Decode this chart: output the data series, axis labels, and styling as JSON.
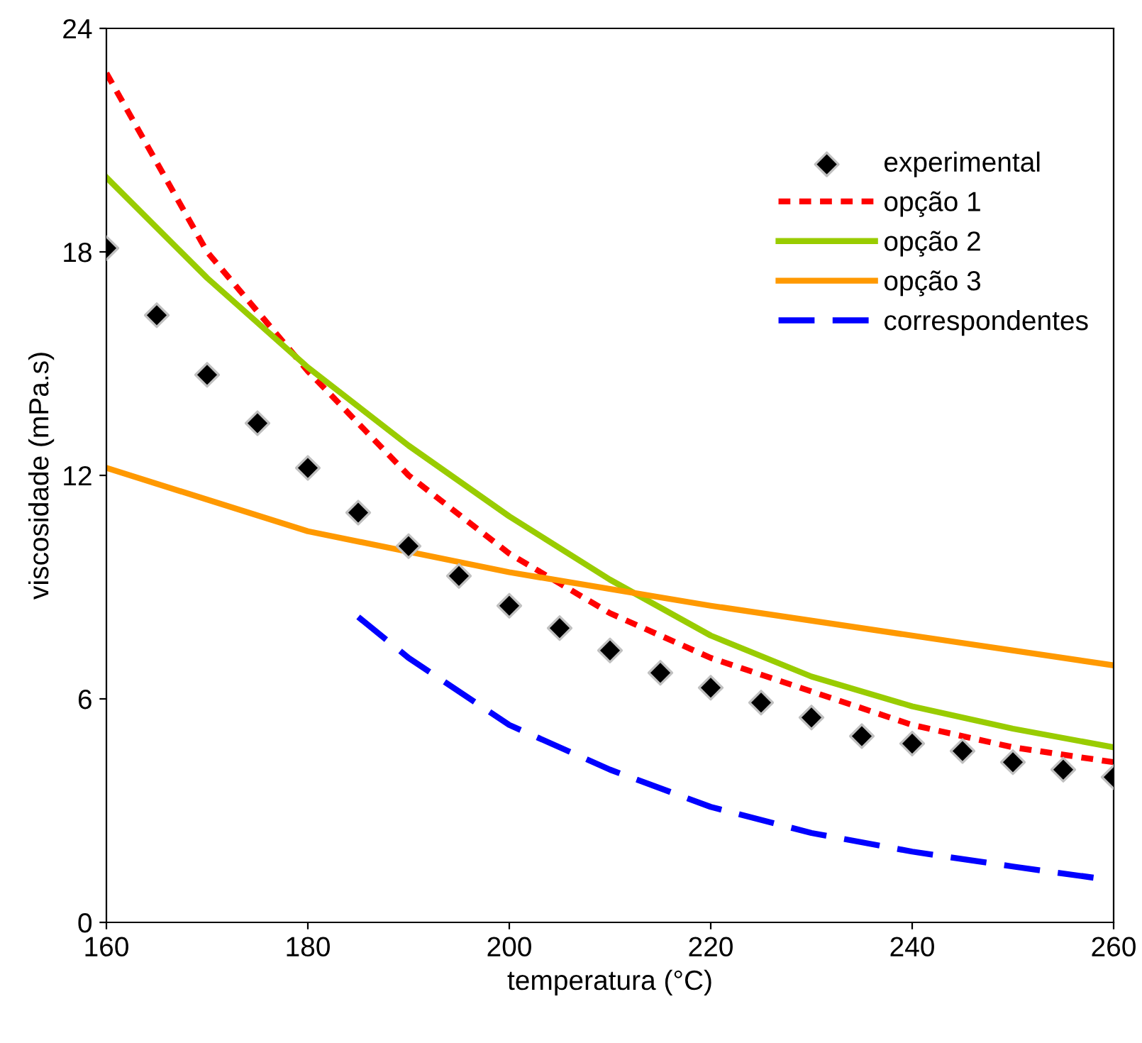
{
  "chart_data": {
    "type": "line",
    "xlabel": "temperatura (°C)",
    "ylabel": "viscosidade (mPa.s)",
    "xlim": [
      160,
      260
    ],
    "xticks": [
      160,
      180,
      200,
      220,
      240,
      260
    ],
    "ylim": [
      0,
      24
    ],
    "yticks": [
      0,
      6,
      12,
      18,
      24
    ],
    "grid": false,
    "legend": "top right",
    "series": [
      {
        "name": "experimental",
        "type": "scatter",
        "marker": "diamond",
        "color": "#000000",
        "x": [
          160,
          165,
          170,
          175,
          180,
          185,
          190,
          195,
          200,
          205,
          210,
          215,
          220,
          225,
          230,
          235,
          240,
          245,
          250,
          255,
          260
        ],
        "values": [
          18.1,
          16.3,
          14.7,
          13.4,
          12.2,
          11.0,
          10.1,
          9.3,
          8.5,
          7.9,
          7.3,
          6.7,
          6.3,
          5.9,
          5.5,
          5.0,
          4.8,
          4.6,
          4.3,
          4.1,
          3.9
        ]
      },
      {
        "name": "opção 1",
        "line_style": "dotted",
        "color": "#ff0000",
        "x": [
          160,
          170,
          180,
          190,
          200,
          205,
          210,
          220,
          230,
          240,
          250,
          260
        ],
        "values": [
          22.8,
          18.0,
          14.8,
          12.0,
          9.9,
          9.1,
          8.3,
          7.1,
          6.2,
          5.3,
          4.7,
          4.3
        ]
      },
      {
        "name": "opção 2",
        "line_style": "solid",
        "color": "#99cc00",
        "x": [
          160,
          170,
          180,
          190,
          200,
          210,
          220,
          230,
          240,
          250,
          260
        ],
        "values": [
          20.0,
          17.3,
          14.9,
          12.8,
          10.9,
          9.2,
          7.7,
          6.6,
          5.8,
          5.2,
          4.7
        ]
      },
      {
        "name": "opção 3",
        "line_style": "solid",
        "color": "#ff9900",
        "x": [
          160,
          180,
          200,
          220,
          240,
          260
        ],
        "values": [
          12.2,
          10.5,
          9.4,
          8.5,
          7.7,
          6.9
        ]
      },
      {
        "name": "correspondentes",
        "line_style": "dashed",
        "color": "#0000ff",
        "x": [
          185,
          190,
          200,
          210,
          220,
          230,
          240,
          250,
          258
        ],
        "values": [
          8.2,
          7.1,
          5.3,
          4.1,
          3.1,
          2.4,
          1.9,
          1.5,
          1.2
        ]
      }
    ]
  }
}
